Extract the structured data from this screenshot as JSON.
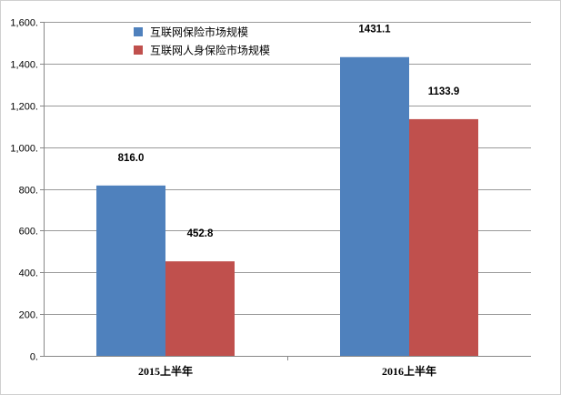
{
  "chart_data": {
    "type": "bar",
    "categories": [
      "2015上半年",
      "2016上半年"
    ],
    "series": [
      {
        "name": "互联网保险市场规模",
        "color": "#4F81BD",
        "values": [
          816.0,
          1431.1
        ],
        "labels": [
          "816.0",
          "1431.1"
        ]
      },
      {
        "name": "互联网人身保险市场规模",
        "color": "#C0504D",
        "values": [
          452.8,
          1133.9
        ],
        "labels": [
          "452.8",
          "1133.9"
        ]
      }
    ],
    "ylim": [
      0,
      1600
    ],
    "yticks": [
      0,
      200,
      400,
      600,
      800,
      1000,
      1200,
      1400,
      1600
    ],
    "ytick_labels": [
      "0.",
      "200.",
      "400.",
      "600.",
      "800.",
      "1,000.",
      "1,200.",
      "1,400.",
      "1,600."
    ],
    "grid": true,
    "legend_position": "top-left"
  }
}
